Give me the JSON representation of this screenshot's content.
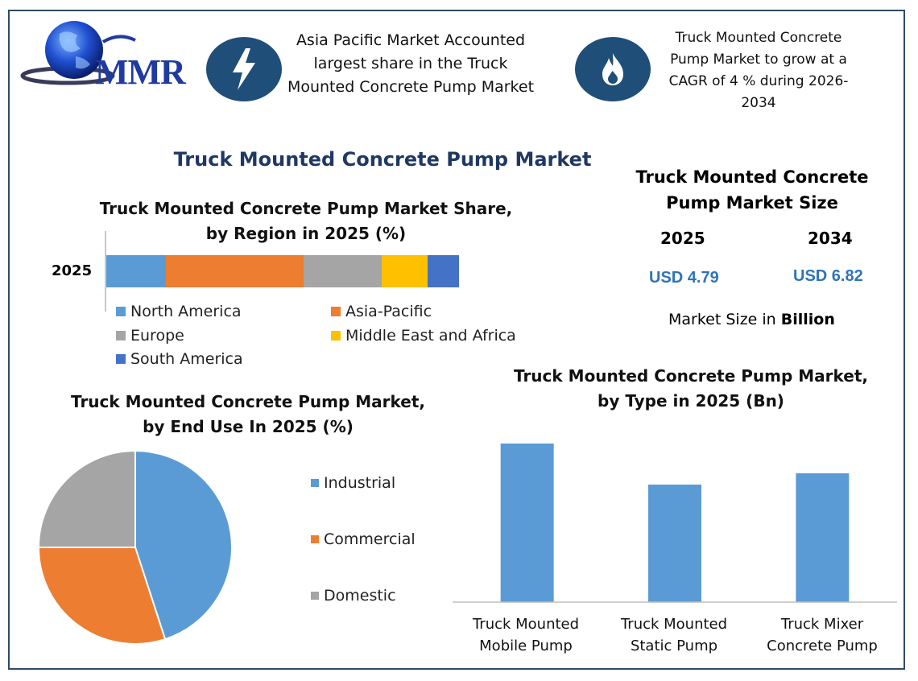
{
  "header": {
    "logo_text": "MMR",
    "left_banner": {
      "icon": "lightning-icon",
      "line1": "Asia Pacific Market Accounted",
      "line2": "largest share in the Truck",
      "line3": "Mounted Concrete Pump Market"
    },
    "right_banner": {
      "icon": "flame-icon",
      "line1": "Truck Mounted Concrete",
      "line2": "Pump Market to grow at a",
      "line3": "CAGR of 4 % during 2026-",
      "line4": "2034"
    }
  },
  "main_title": "Truck Mounted Concrete Pump Market",
  "market_size": {
    "title_line1": "Truck Mounted Concrete",
    "title_line2": "Pump Market Size",
    "years": [
      "2025",
      "2034"
    ],
    "values": [
      "USD 4.79",
      "USD 6.82"
    ],
    "unit_prefix": "Market Size in ",
    "unit_bold": "Billion"
  },
  "colors": {
    "north_america": "#5b9bd5",
    "asia_pacific": "#ed7d31",
    "europe": "#a5a5a5",
    "mea": "#ffc000",
    "south_america": "#4472c4",
    "brand_dark": "#1f4e79",
    "value_blue": "#2e75b6"
  },
  "chart_data": [
    {
      "type": "bar",
      "orientation": "horizontal-stacked",
      "title_line1": "Truck Mounted Concrete Pump Market Share,",
      "title_line2": "by Region in 2025 (%)",
      "categories": [
        "2025"
      ],
      "series": [
        {
          "name": "North America",
          "values": [
            17
          ],
          "color": "#5b9bd5"
        },
        {
          "name": "Asia-Pacific",
          "values": [
            39
          ],
          "color": "#ed7d31"
        },
        {
          "name": "Europe",
          "values": [
            22
          ],
          "color": "#a5a5a5"
        },
        {
          "name": "Middle East and Africa",
          "values": [
            13
          ],
          "color": "#ffc000"
        },
        {
          "name": "South America",
          "values": [
            9
          ],
          "color": "#4472c4"
        }
      ],
      "legend": "bottom"
    },
    {
      "type": "pie",
      "title_line1": "Truck Mounted Concrete Pump Market,",
      "title_line2": "by End Use In 2025 (%)",
      "slices": [
        {
          "name": "Industrial",
          "value": 45,
          "color": "#5b9bd5"
        },
        {
          "name": "Commercial",
          "value": 30,
          "color": "#ed7d31"
        },
        {
          "name": "Domestic",
          "value": 25,
          "color": "#a5a5a5"
        }
      ],
      "legend": "right"
    },
    {
      "type": "bar",
      "title_line1": "Truck Mounted Concrete Pump Market,",
      "title_line2": "by Type in 2025 (Bn)",
      "categories": [
        [
          "Truck Mounted",
          "Mobile Pump"
        ],
        [
          "Truck Mounted",
          "Static Pump"
        ],
        [
          "Truck Mixer",
          "Concrete Pump"
        ]
      ],
      "values": [
        1.97,
        1.46,
        1.6
      ],
      "ylim": [
        0,
        2
      ],
      "color": "#5b9bd5",
      "grid": false
    }
  ]
}
